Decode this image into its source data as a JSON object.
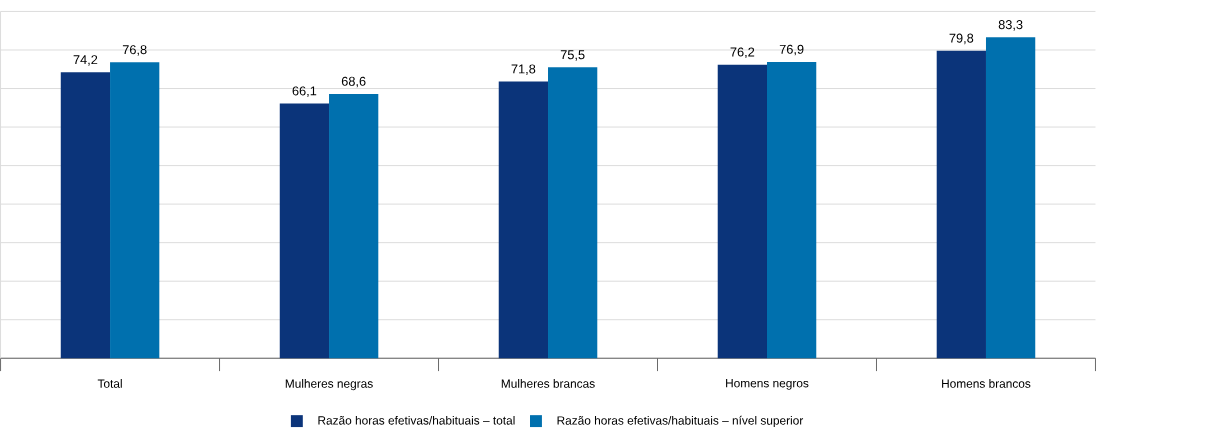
{
  "chart_data": {
    "type": "bar",
    "categories": [
      "Total",
      "Mulheres negras",
      "Mulheres brancas",
      "Homens negros",
      "Homens brancos"
    ],
    "series": [
      {
        "name": "Razão horas efetivas/habituais – total",
        "color": "#0b347a",
        "values": [
          74.2,
          66.1,
          71.8,
          76.2,
          79.8
        ],
        "value_labels": [
          "74,2",
          "66,1",
          "71,8",
          "76,2",
          "79,8"
        ]
      },
      {
        "name": "Razão horas efetivas/habituais – nível superior",
        "color": "#0070ae",
        "values": [
          76.8,
          68.6,
          75.5,
          76.9,
          83.3
        ],
        "value_labels": [
          "76,8",
          "68,6",
          "75,5",
          "76,9",
          "83,3"
        ]
      }
    ],
    "ylim": [
      0,
      90
    ],
    "yticks": [
      {
        "value": 0,
        "label": null
      },
      {
        "value": 10,
        "label": null
      },
      {
        "value": 20,
        "label": null
      },
      {
        "value": 30,
        "label": null
      },
      {
        "value": 40,
        "label": null
      },
      {
        "value": 50,
        "label": null
      },
      {
        "value": 60,
        "label": null
      },
      {
        "value": 70,
        "label": null
      },
      {
        "value": 80,
        "label": null
      },
      {
        "value": 90,
        "label": null
      }
    ],
    "grid": "y",
    "legend": "bottom"
  }
}
